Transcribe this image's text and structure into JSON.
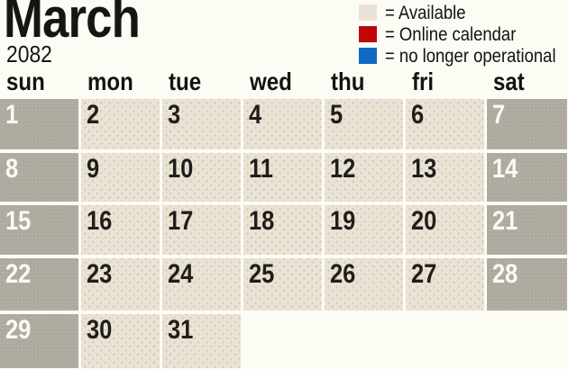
{
  "header": {
    "month": "March",
    "year": "2082"
  },
  "legend": {
    "items": [
      {
        "name": "available",
        "label": "= Available",
        "color": "#eae3d5"
      },
      {
        "name": "online-calendar",
        "label": "= Online calendar",
        "color": "#c00606"
      },
      {
        "name": "no-longer-operational",
        "label": "= no longer operational",
        "color": "#0f6ac4"
      }
    ]
  },
  "calendar": {
    "day_headers": [
      "sun",
      "mon",
      "tue",
      "wed",
      "thu",
      "fri",
      "sat"
    ],
    "weeks": [
      [
        "1",
        "2",
        "3",
        "4",
        "5",
        "6",
        "7"
      ],
      [
        "8",
        "9",
        "10",
        "11",
        "12",
        "13",
        "14"
      ],
      [
        "15",
        "16",
        "17",
        "18",
        "19",
        "20",
        "21"
      ],
      [
        "22",
        "23",
        "24",
        "25",
        "26",
        "27",
        "28"
      ],
      [
        "29",
        "30",
        "31",
        "",
        "",
        "",
        ""
      ]
    ],
    "colors": {
      "available_bg": "#eae3d5",
      "available_dot": "#d6c9b4",
      "weekend_bg": "#b2ada3",
      "weekend_dot": "#a8a399",
      "weekday_number": "#201e1b",
      "weekend_number": "#fbf9f3"
    }
  }
}
